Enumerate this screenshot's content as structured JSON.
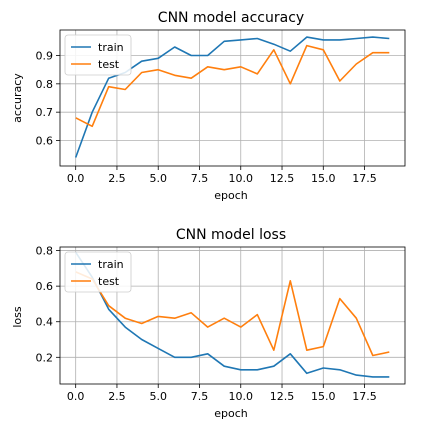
{
  "chart_data": [
    {
      "type": "line",
      "title": "CNN model accuracy",
      "xlabel": "epoch",
      "ylabel": "accuracy",
      "xlim": [
        -0.95,
        19.95
      ],
      "ylim": [
        0.51,
        0.99
      ],
      "x_ticks": [
        0,
        2.5,
        5,
        7.5,
        10,
        12.5,
        15,
        17.5
      ],
      "x_tick_labels": [
        "0.0",
        "2.5",
        "5.0",
        "7.5",
        "10.0",
        "12.5",
        "15.0",
        "17.5"
      ],
      "y_ticks": [
        0.6,
        0.7,
        0.8,
        0.9
      ],
      "y_tick_labels": [
        "0.6",
        "0.7",
        "0.8",
        "0.9"
      ],
      "grid": true,
      "legend_position": "upper left",
      "x": [
        0,
        1,
        2,
        3,
        4,
        5,
        6,
        7,
        8,
        9,
        10,
        11,
        12,
        13,
        14,
        15,
        16,
        17,
        18,
        19
      ],
      "series": [
        {
          "name": "train",
          "color": "#1f77b4",
          "values": [
            0.54,
            0.7,
            0.82,
            0.84,
            0.88,
            0.89,
            0.93,
            0.9,
            0.9,
            0.95,
            0.955,
            0.96,
            0.94,
            0.915,
            0.965,
            0.955,
            0.955,
            0.96,
            0.965,
            0.96
          ]
        },
        {
          "name": "test",
          "color": "#ff7f0e",
          "values": [
            0.68,
            0.65,
            0.79,
            0.78,
            0.84,
            0.85,
            0.83,
            0.82,
            0.86,
            0.85,
            0.86,
            0.835,
            0.92,
            0.8,
            0.935,
            0.92,
            0.81,
            0.87,
            0.91,
            0.91
          ]
        }
      ]
    },
    {
      "type": "line",
      "title": "CNN model loss",
      "xlabel": "epoch",
      "ylabel": "loss",
      "xlim": [
        -0.95,
        19.95
      ],
      "ylim": [
        0.05,
        0.82
      ],
      "x_ticks": [
        0,
        2.5,
        5,
        7.5,
        10,
        12.5,
        15,
        17.5
      ],
      "x_tick_labels": [
        "0.0",
        "2.5",
        "5.0",
        "7.5",
        "10.0",
        "12.5",
        "15.0",
        "17.5"
      ],
      "y_ticks": [
        0.2,
        0.4,
        0.6,
        0.8
      ],
      "y_tick_labels": [
        "0.2",
        "0.4",
        "0.6",
        "0.8"
      ],
      "grid": true,
      "legend_position": "upper left",
      "x": [
        0,
        1,
        2,
        3,
        4,
        5,
        6,
        7,
        8,
        9,
        10,
        11,
        12,
        13,
        14,
        15,
        16,
        17,
        18,
        19
      ],
      "series": [
        {
          "name": "train",
          "color": "#1f77b4",
          "values": [
            0.79,
            0.65,
            0.47,
            0.37,
            0.3,
            0.25,
            0.2,
            0.2,
            0.22,
            0.15,
            0.13,
            0.13,
            0.15,
            0.22,
            0.11,
            0.14,
            0.13,
            0.1,
            0.09,
            0.09
          ]
        },
        {
          "name": "test",
          "color": "#ff7f0e",
          "values": [
            0.68,
            0.64,
            0.49,
            0.42,
            0.39,
            0.43,
            0.42,
            0.45,
            0.37,
            0.42,
            0.37,
            0.44,
            0.24,
            0.63,
            0.24,
            0.26,
            0.53,
            0.42,
            0.21,
            0.23
          ]
        }
      ]
    }
  ]
}
